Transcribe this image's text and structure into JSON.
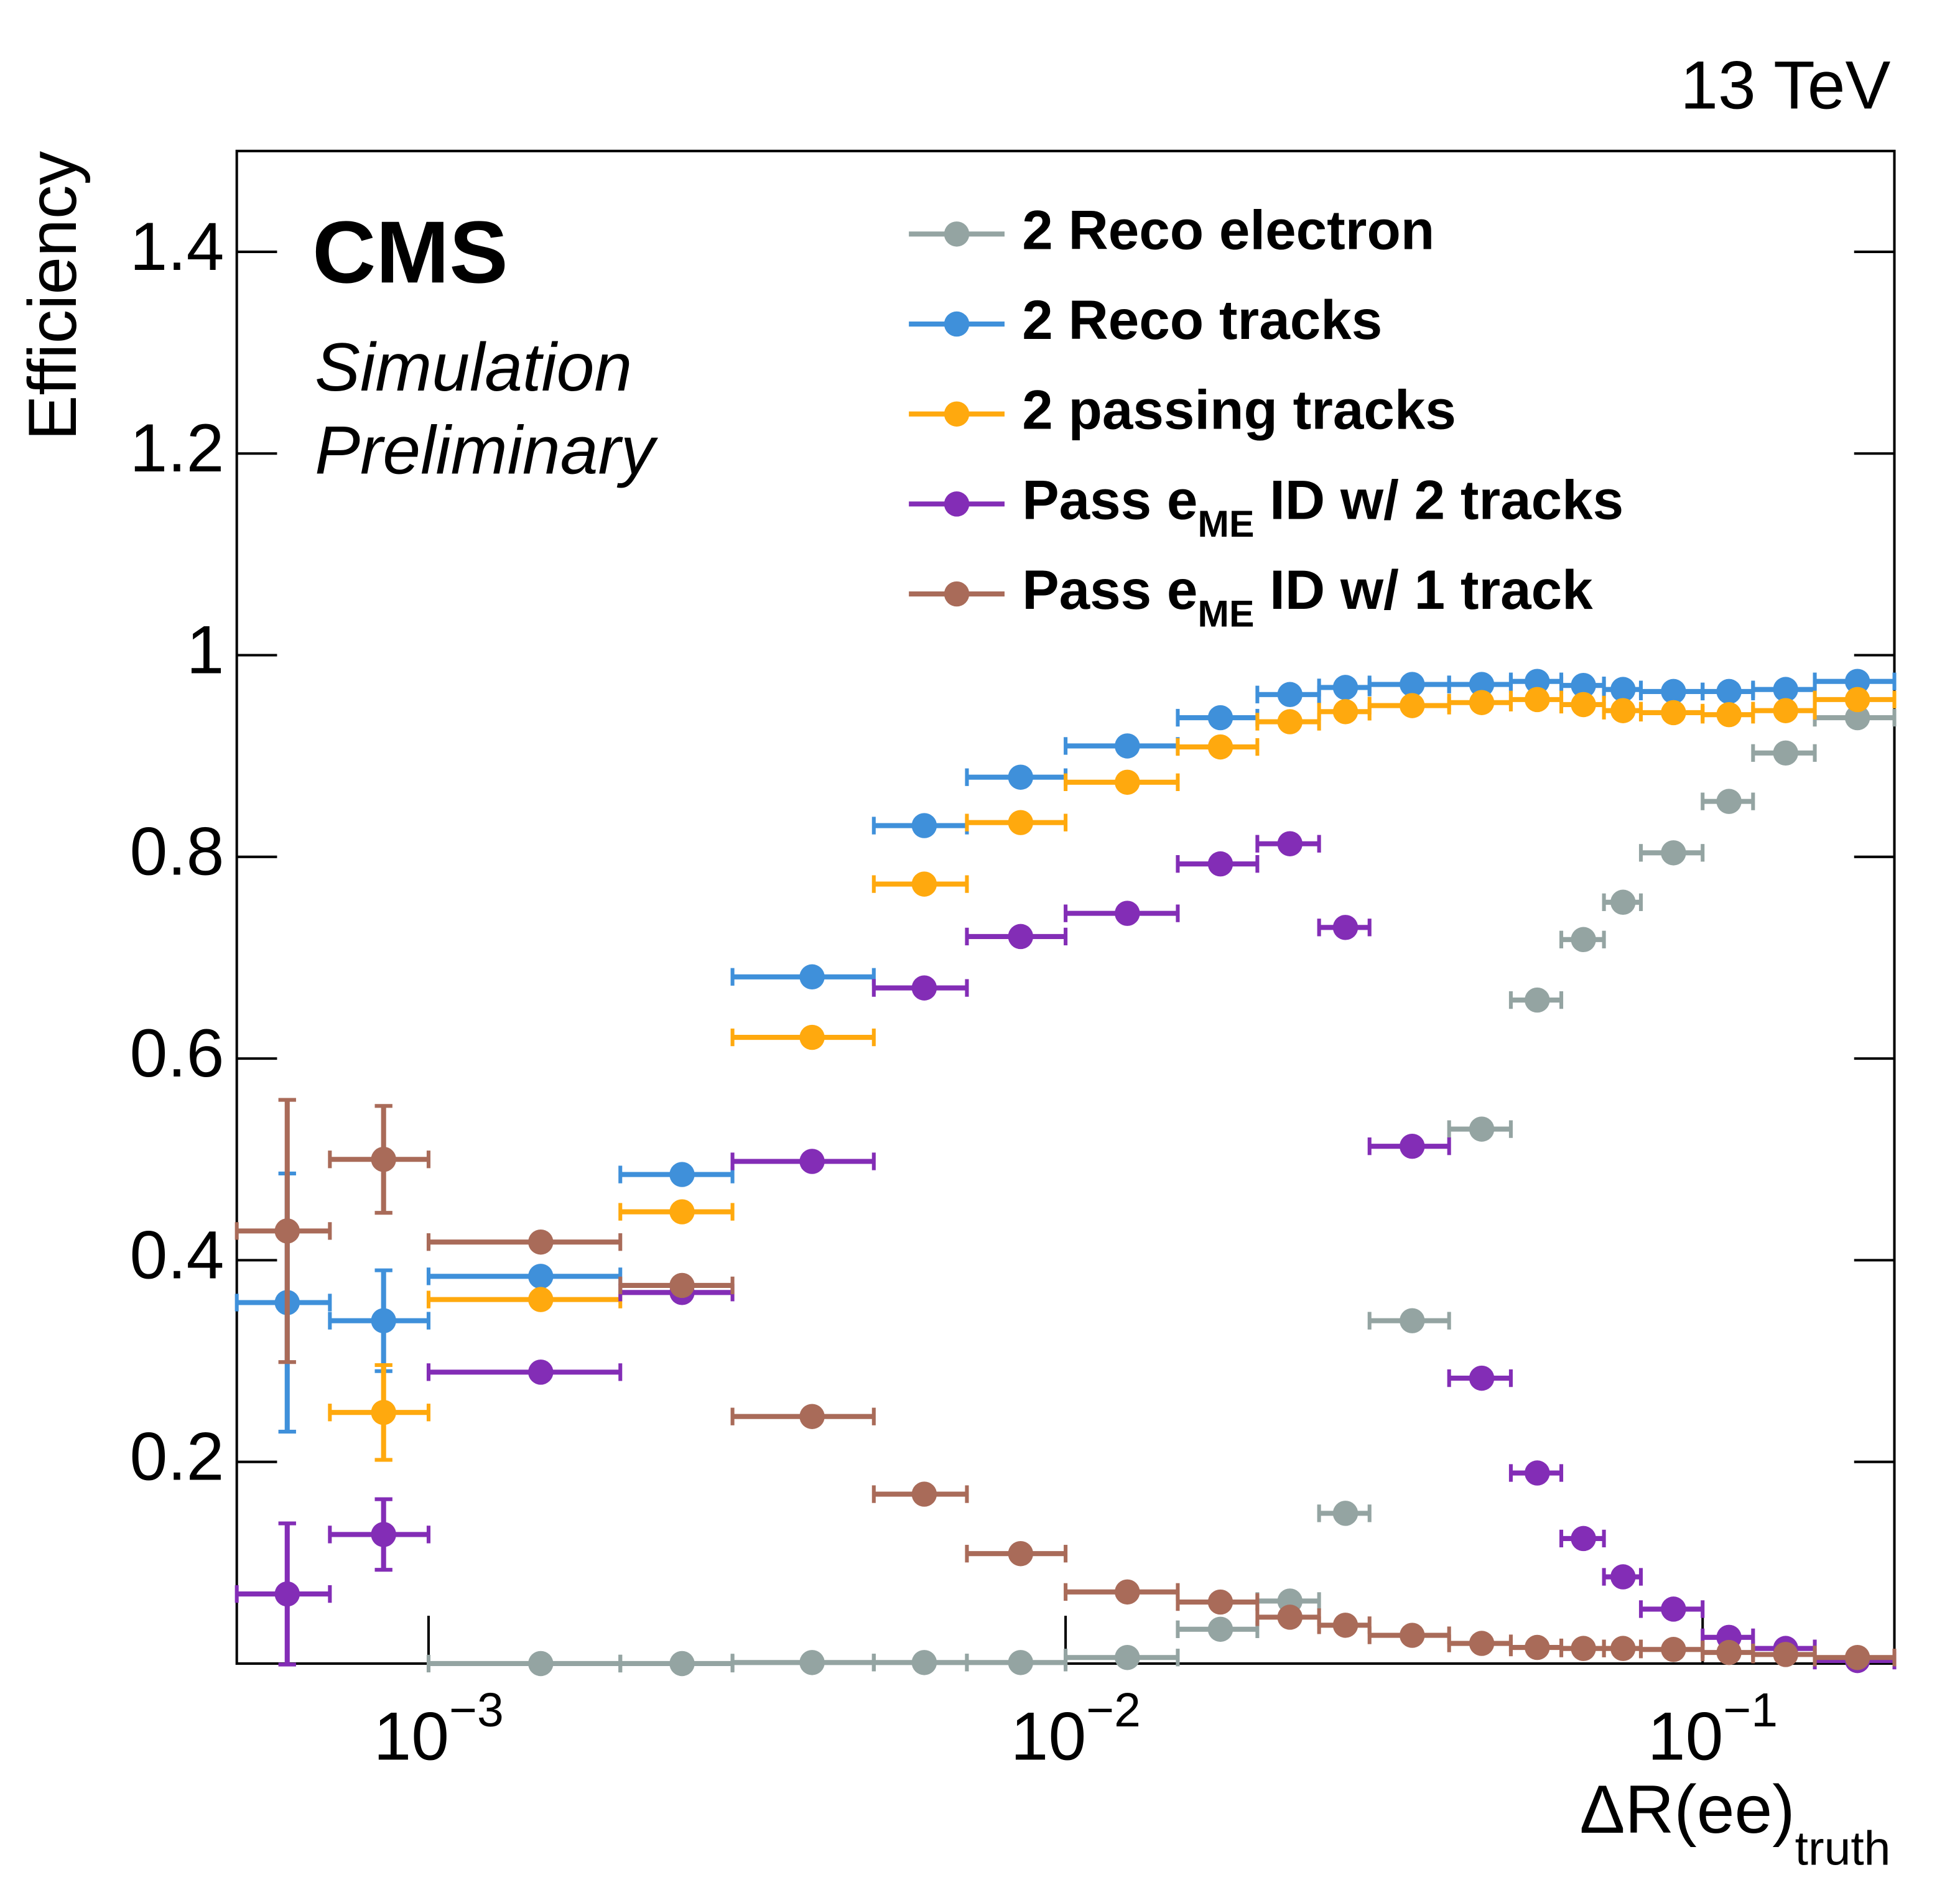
{
  "chart_data": {
    "type": "scatter",
    "top_right_label": "13 TeV",
    "experiment": "CMS",
    "status_lines": [
      "Simulation",
      "Preliminary"
    ],
    "ylabel": "Efficiency",
    "xlabel": "ΔR(ee)",
    "xlabel_sub": "truth",
    "xscale": "log",
    "xlim": [
      0.0005,
      0.2
    ],
    "ylim": [
      0,
      1.5
    ],
    "xticks": [
      {
        "value": 0.001,
        "label": "10",
        "exponent": "−3"
      },
      {
        "value": 0.01,
        "label": "10",
        "exponent": "−2"
      },
      {
        "value": 0.1,
        "label": "10",
        "exponent": "−1"
      }
    ],
    "yticks": [
      0.2,
      0.4,
      0.6,
      0.8,
      1,
      1.2,
      1.4
    ],
    "bins": [
      0.0005,
      0.0007,
      0.001,
      0.002,
      0.003,
      0.005,
      0.007,
      0.01,
      0.015,
      0.02,
      0.025,
      0.03,
      0.04,
      0.05,
      0.06,
      0.07,
      0.08,
      0.1,
      0.12,
      0.15,
      0.2
    ],
    "series": [
      {
        "name": [
          "2 Reco electron"
        ],
        "color": "#94a4a2",
        "values": [
          null,
          null,
          0,
          0,
          0.001,
          0.001,
          0.001,
          0.006,
          0.034,
          0.062,
          0.149,
          0.34,
          0.53,
          0.658,
          0.718,
          0.755,
          0.804,
          0.855,
          0.903,
          0.938
        ],
        "errors": [
          null,
          null,
          null,
          null,
          null,
          null,
          null,
          null,
          null,
          null,
          null,
          null,
          null,
          null,
          null,
          null,
          null,
          null,
          null,
          null
        ]
      },
      {
        "name": [
          "2 Reco tracks"
        ],
        "color": "#3f90da",
        "values": [
          0.358,
          0.34,
          0.384,
          0.485,
          0.681,
          0.831,
          0.879,
          0.91,
          0.938,
          0.961,
          0.968,
          0.971,
          0.971,
          0.974,
          0.97,
          0.966,
          0.964,
          0.964,
          0.966,
          0.974
        ],
        "errors": [
          0.128,
          0.05,
          null,
          null,
          null,
          null,
          null,
          null,
          null,
          null,
          null,
          null,
          null,
          null,
          null,
          null,
          null,
          null,
          null,
          null
        ]
      },
      {
        "name": [
          "2 passing tracks"
        ],
        "color": "#ffa90e",
        "values": [
          null,
          0.249,
          0.361,
          0.448,
          0.621,
          0.773,
          0.834,
          0.874,
          0.909,
          0.934,
          0.944,
          0.95,
          0.953,
          0.956,
          0.951,
          0.945,
          0.943,
          0.941,
          0.945,
          0.956
        ],
        "errors": [
          null,
          0.047,
          null,
          null,
          null,
          null,
          null,
          null,
          null,
          null,
          null,
          null,
          null,
          null,
          null,
          null,
          null,
          null,
          null,
          null
        ]
      },
      {
        "name": [
          "Pass e",
          "ME",
          " ID w/ 2 tracks"
        ],
        "color": "#832db6",
        "values": [
          0.069,
          0.128,
          0.289,
          0.368,
          0.498,
          0.67,
          0.721,
          0.744,
          0.793,
          0.813,
          0.73,
          0.513,
          0.283,
          0.189,
          0.124,
          0.086,
          0.054,
          0.026,
          0.015,
          0.003
        ],
        "errors": [
          0.07,
          0.035,
          null,
          null,
          null,
          null,
          null,
          null,
          null,
          null,
          null,
          null,
          null,
          null,
          null,
          null,
          null,
          null,
          null,
          null
        ]
      },
      {
        "name": [
          "Pass e",
          "ME",
          " ID w/ 1 track"
        ],
        "color": "#a96b59",
        "values": [
          0.429,
          0.5,
          0.418,
          0.375,
          0.245,
          0.168,
          0.109,
          0.071,
          0.061,
          0.046,
          0.038,
          0.028,
          0.02,
          0.016,
          0.015,
          0.015,
          0.014,
          0.011,
          0.009,
          0.006
        ],
        "errors": [
          0.13,
          0.053,
          null,
          null,
          null,
          null,
          null,
          null,
          null,
          null,
          null,
          null,
          null,
          null,
          null,
          null,
          null,
          null,
          null,
          null
        ]
      }
    ]
  }
}
